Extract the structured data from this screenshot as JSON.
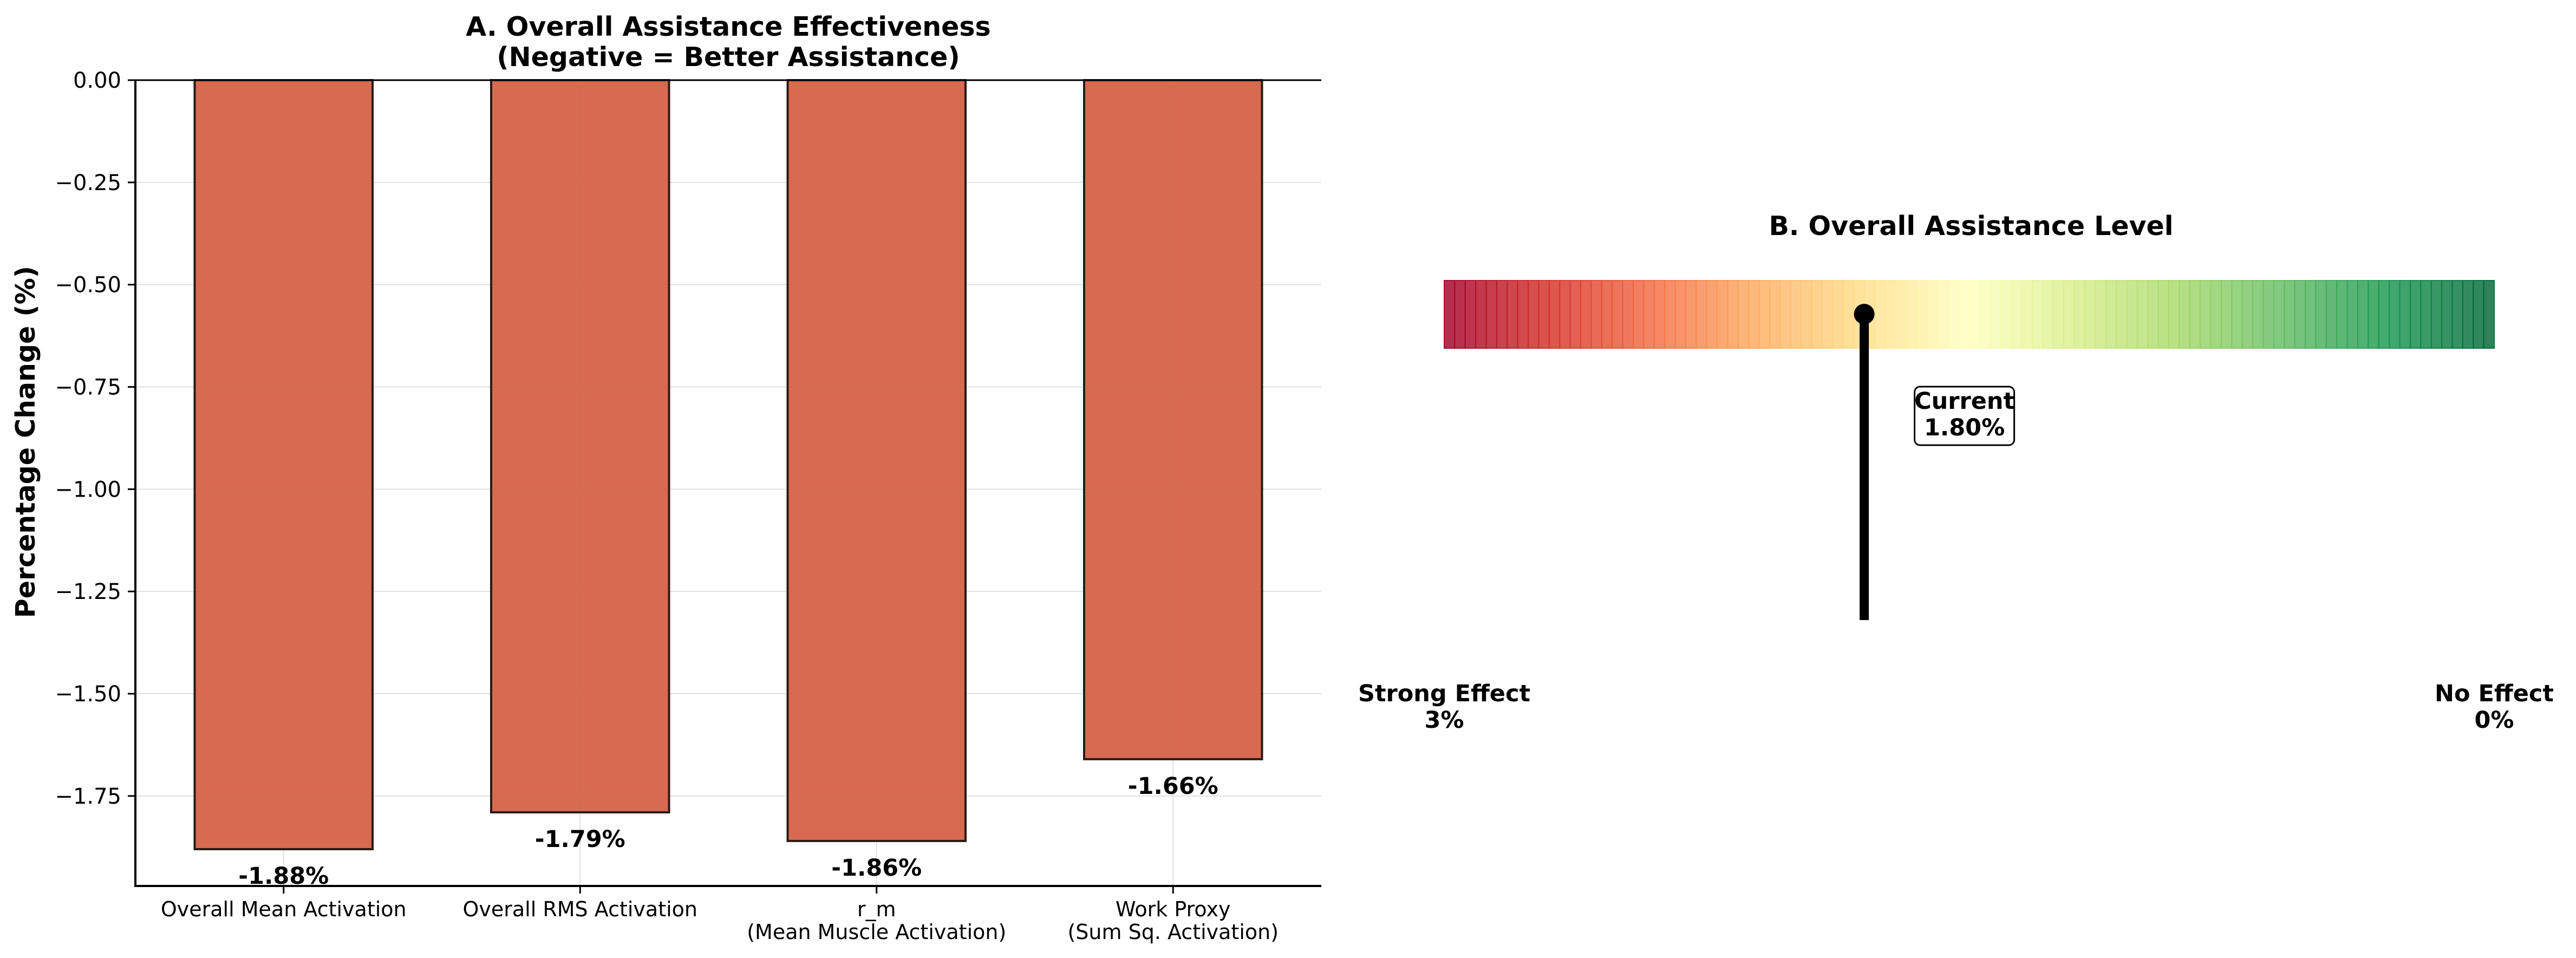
{
  "chart_data": [
    {
      "type": "bar",
      "title": "A. Overall Assistance Effectiveness",
      "subtitle": "(Negative = Better Assistance)",
      "xlabel": "",
      "ylabel": "Percentage Change (%)",
      "categories": [
        [
          "Overall Mean Activation"
        ],
        [
          "Overall RMS Activation"
        ],
        [
          "r_m",
          "(Mean Muscle Activation)"
        ],
        [
          "Work Proxy",
          "(Sum Sq. Activation)"
        ]
      ],
      "values": [
        -1.88,
        -1.79,
        -1.86,
        -1.66
      ],
      "data_labels": [
        "-1.88%",
        "-1.79%",
        "-1.86%",
        "-1.66%"
      ],
      "ylim": [
        -1.97,
        0.0
      ],
      "yticks": [
        0.0,
        -0.25,
        -0.5,
        -0.75,
        -1.0,
        -1.25,
        -1.5,
        -1.75
      ],
      "ytick_labels": [
        "0.00",
        "−0.25",
        "−0.50",
        "−0.75",
        "−1.00",
        "−1.25",
        "−1.50",
        "−1.75"
      ],
      "grid": true,
      "colors": {
        "bar_fill": "#d6654a",
        "bar_edge": "#2a1a14",
        "grid": "#e0e0e0",
        "axis": "#000000"
      }
    },
    {
      "type": "gauge",
      "title": "B. Overall Assistance Level",
      "scale_min_label": [
        "Strong Effect",
        "3%"
      ],
      "scale_max_label": [
        "No Effect",
        "0%"
      ],
      "scale_left_value": 3,
      "scale_right_value": 0,
      "current_value": 1.8,
      "current_label": [
        "Current",
        "1.80%"
      ],
      "colormap": "RdYlGn",
      "segments": 100
    }
  ]
}
